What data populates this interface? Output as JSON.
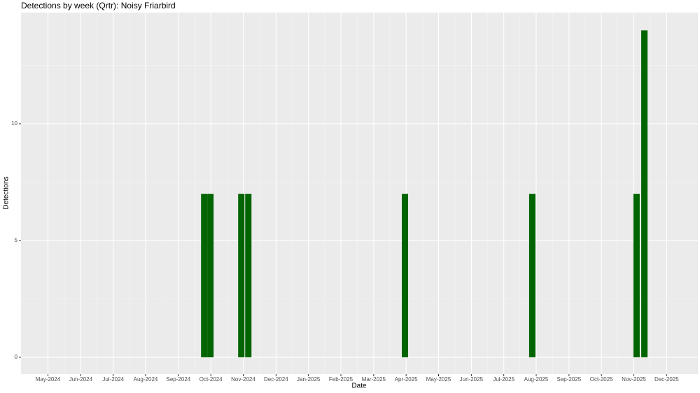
{
  "chart_data": {
    "type": "bar",
    "title": "Detections by week (Qrtr): Noisy Friarbird",
    "x_label": "Date",
    "y_label": "Detections",
    "x": [
      2024.733,
      2024.749,
      2024.828,
      2024.846,
      2025.247,
      2025.573,
      2025.84,
      2025.86
    ],
    "values": [
      7,
      7,
      7,
      7,
      7,
      7,
      7,
      14
    ],
    "color": "#006400",
    "xlim": [
      2024.264,
      2025.997
    ],
    "xticks": [
      {
        "value": 2024.333,
        "label": "May-2024"
      },
      {
        "value": 2024.417,
        "label": "Jun-2024"
      },
      {
        "value": 2024.5,
        "label": "Jul-2024"
      },
      {
        "value": 2024.583,
        "label": "Aug-2024"
      },
      {
        "value": 2024.667,
        "label": "Sep-2024"
      },
      {
        "value": 2024.75,
        "label": "Oct-2024"
      },
      {
        "value": 2024.833,
        "label": "Nov-2024"
      },
      {
        "value": 2024.917,
        "label": "Dec-2024"
      },
      {
        "value": 2025.0,
        "label": "Jan-2025"
      },
      {
        "value": 2025.083,
        "label": "Feb-2025"
      },
      {
        "value": 2025.167,
        "label": "Mar-2025"
      },
      {
        "value": 2025.25,
        "label": "Apr-2025"
      },
      {
        "value": 2025.333,
        "label": "May-2025"
      },
      {
        "value": 2025.417,
        "label": "Jun-2025"
      },
      {
        "value": 2025.5,
        "label": "Jul-2025"
      },
      {
        "value": 2025.583,
        "label": "Aug-2025"
      },
      {
        "value": 2025.667,
        "label": "Sep-2025"
      },
      {
        "value": 2025.75,
        "label": "Oct-2025"
      },
      {
        "value": 2025.833,
        "label": "Nov-2025"
      },
      {
        "value": 2025.917,
        "label": "Dec-2025"
      }
    ],
    "ylim": [
      -0.72,
      14.76
    ],
    "yticks": [
      0,
      5,
      10
    ],
    "grid": true
  }
}
